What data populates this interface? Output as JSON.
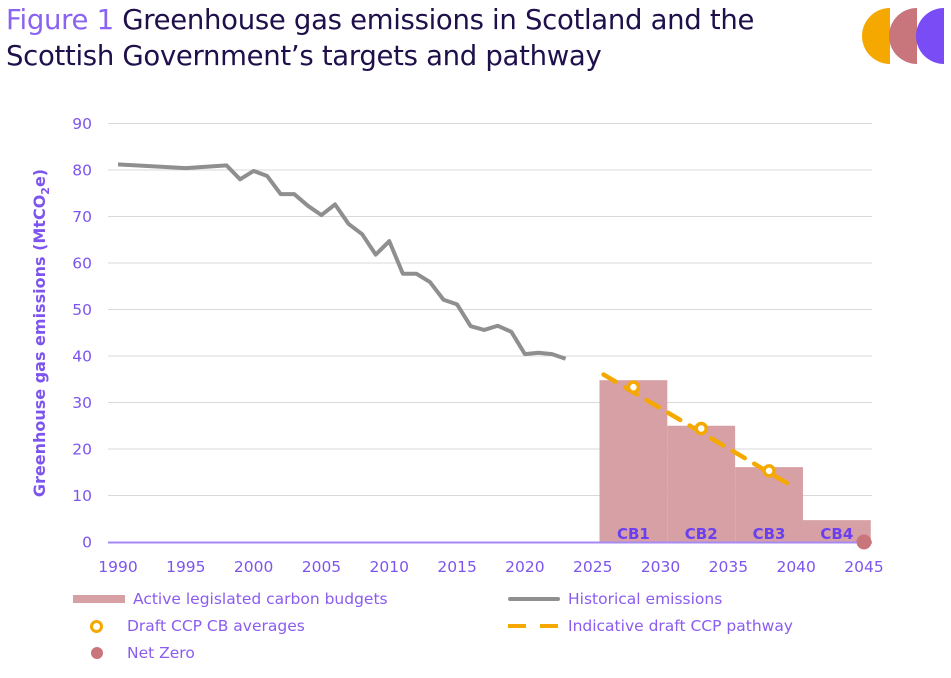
{
  "header": {
    "figure_label": "Figure 1",
    "title": "Greenhouse gas emissions in Scotland and the Scottish Government’s targets and pathway",
    "title_line1": "Greenhouse gas emissions in Scotland and the",
    "title_line2": "Scottish Government’s targets and pathway",
    "logo_icon": "three-semicircles-logo",
    "logo_colors": [
      "#f5a900",
      "#c8757c",
      "#7a4cf5"
    ]
  },
  "colors": {
    "axis_text": "#7d55ee",
    "historical": "#8f8f8f",
    "pathway": "#f5a900",
    "budget_fill": "#d7a0a5",
    "net_zero": "#c8757c",
    "gridline": "#d9d9d9",
    "axis_line": "#a58af5"
  },
  "chart_data": {
    "type": "line",
    "title": "Figure 1 Greenhouse gas emissions in Scotland and the Scottish Government’s targets and pathway",
    "xlabel": "",
    "ylabel": "Greenhouse gas emissions (MtCO2e)",
    "ylabel_main": "Greenhouse gas emissions (MtCO",
    "ylabel_sub": "2",
    "ylabel_end": "e)",
    "xlim": [
      1990,
      2045
    ],
    "ylim": [
      0,
      90
    ],
    "x_ticks": [
      1990,
      1995,
      2000,
      2005,
      2010,
      2015,
      2020,
      2025,
      2030,
      2035,
      2040,
      2045
    ],
    "y_ticks": [
      0,
      10,
      20,
      30,
      40,
      50,
      60,
      70,
      80,
      90
    ],
    "grid": "horizontal",
    "legend_position": "bottom",
    "series": [
      {
        "name": "Historical emissions",
        "kind": "line",
        "x": [
          1990,
          1995,
          1998,
          1999,
          2000,
          2001,
          2002,
          2003,
          2004,
          2005,
          2006,
          2007,
          2008,
          2009,
          2010,
          2011,
          2012,
          2013,
          2014,
          2015,
          2016,
          2017,
          2018,
          2019,
          2020,
          2021,
          2022,
          2023
        ],
        "y": [
          81.2,
          80.4,
          81.0,
          78.0,
          79.8,
          78.7,
          74.8,
          74.8,
          72.3,
          70.3,
          72.6,
          68.4,
          66.2,
          61.8,
          64.7,
          57.7,
          57.7,
          55.9,
          52.1,
          51.1,
          46.4,
          45.6,
          46.5,
          45.2,
          40.4,
          40.7,
          40.4,
          39.4
        ]
      },
      {
        "name": "Active legislated carbon budgets",
        "kind": "bar",
        "bars": [
          {
            "label": "CB1",
            "start": 2026,
            "end": 2030,
            "value": 34.8
          },
          {
            "label": "CB2",
            "start": 2031,
            "end": 2035,
            "value": 25.0
          },
          {
            "label": "CB3",
            "start": 2036,
            "end": 2040,
            "value": 16.1
          },
          {
            "label": "CB4",
            "start": 2041,
            "end": 2045,
            "value": 4.7
          }
        ]
      },
      {
        "name": "Indicative draft CCP pathway",
        "kind": "dashed-line",
        "x": [
          2025.8,
          2039.3
        ],
        "y": [
          36.0,
          12.7
        ]
      },
      {
        "name": "Draft CCP CB averages",
        "kind": "marker-ring",
        "x": [
          2028,
          2033,
          2038
        ],
        "y": [
          33.3,
          24.4,
          15.3
        ]
      },
      {
        "name": "Net Zero",
        "kind": "marker-dot",
        "x": [
          2045
        ],
        "y": [
          0
        ]
      }
    ]
  },
  "legend": {
    "items": [
      {
        "label": "Active legislated carbon budgets",
        "symbol": "bar"
      },
      {
        "label": "Historical emissions",
        "symbol": "line"
      },
      {
        "label": "Draft CCP CB averages",
        "symbol": "ring"
      },
      {
        "label": "Indicative draft CCP pathway",
        "symbol": "dashed-line"
      },
      {
        "label": "Net Zero",
        "symbol": "dot"
      }
    ]
  }
}
